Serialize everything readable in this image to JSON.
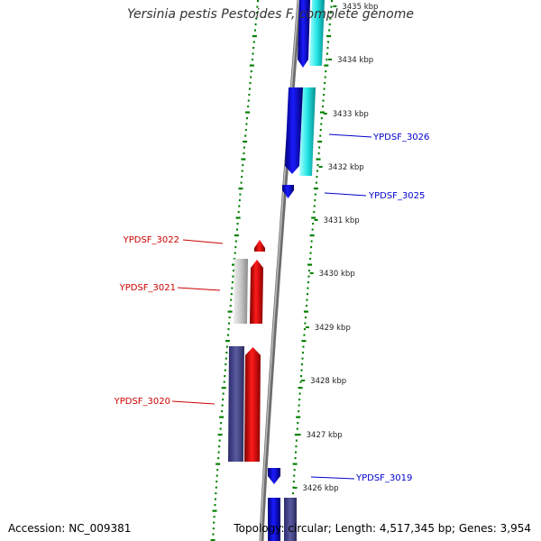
{
  "title": "Yersinia pestis Pestoides F, complete genome",
  "footer": {
    "accession": "Accession: NC_009381",
    "topology": "Topology: circular; Length: 4,517,345 bp; Genes: 3,954"
  },
  "scale": {
    "unit": "kbp",
    "ticks": [
      {
        "kbp": 3435,
        "label": "3435 kbp"
      },
      {
        "kbp": 3434,
        "label": "3434 kbp"
      },
      {
        "kbp": 3433,
        "label": "3433 kbp"
      },
      {
        "kbp": 3432,
        "label": "3432 kbp"
      },
      {
        "kbp": 3431,
        "label": "3431 kbp"
      },
      {
        "kbp": 3430,
        "label": "3430 kbp"
      },
      {
        "kbp": 3429,
        "label": "3429 kbp"
      },
      {
        "kbp": 3428,
        "label": "3428 kbp"
      },
      {
        "kbp": 3427,
        "label": "3427 kbp"
      },
      {
        "kbp": 3426,
        "label": "3426 kbp"
      }
    ]
  },
  "gene_labels": [
    {
      "name": "YPDSF_3026",
      "strand": "forward"
    },
    {
      "name": "YPDSF_3025",
      "strand": "forward"
    },
    {
      "name": "YPDSF_3022",
      "strand": "reverse"
    },
    {
      "name": "YPDSF_3021",
      "strand": "reverse"
    },
    {
      "name": "YPDSF_3020",
      "strand": "reverse"
    },
    {
      "name": "YPDSF_3019",
      "strand": "forward"
    }
  ],
  "colors": {
    "forward_gene": "#1a1aff",
    "forward_rna": "#22e5e5",
    "forward_label": "#0000cc",
    "reverse_gene": "#ff0000",
    "reverse_other": "#c0c0c0",
    "reverse_dark": "#4a4a8c",
    "reverse_label": "#cc0000",
    "backbone": "#888888",
    "gc_dots": "#008000",
    "scale_text": "#222222"
  }
}
